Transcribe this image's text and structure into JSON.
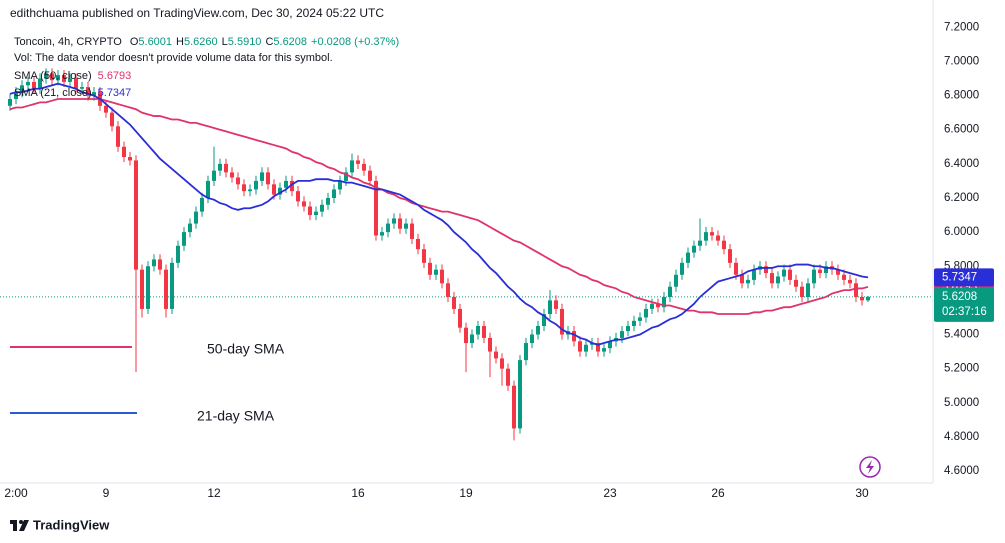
{
  "chart_data": {
    "type": "candlestick",
    "attribution": "edithchuama published on TradingView.com, Dec 30, 2024 05:22 UTC",
    "symbol": "Toncoin, 4h, CRYPTO",
    "ohlc_legend": [
      {
        "label": "O",
        "value": "5.6001"
      },
      {
        "label": "H",
        "value": "5.6260"
      },
      {
        "label": "L",
        "value": "5.5910"
      },
      {
        "label": "C",
        "value": "5.6208"
      }
    ],
    "change": "+0.0208 (+0.37%)",
    "volume_note": "Vol: The data vendor doesn't provide volume data for this symbol.",
    "countdown": "02:37:16",
    "footer": "TradingView",
    "up_color": "#089981",
    "down_color": "#f23645",
    "categories": [
      null,
      "2:00",
      null,
      null,
      null,
      null,
      null,
      null,
      null,
      null,
      null,
      null,
      null,
      null,
      null,
      null,
      "9",
      null,
      null,
      null,
      null,
      null,
      null,
      null,
      null,
      null,
      null,
      null,
      null,
      null,
      null,
      null,
      null,
      null,
      "12",
      null,
      null,
      null,
      null,
      null,
      null,
      null,
      null,
      null,
      null,
      null,
      null,
      null,
      null,
      null,
      null,
      null,
      null,
      null,
      null,
      null,
      null,
      null,
      "16",
      null,
      null,
      null,
      null,
      null,
      null,
      null,
      null,
      null,
      null,
      null,
      null,
      null,
      null,
      null,
      null,
      null,
      "19",
      null,
      null,
      null,
      null,
      null,
      null,
      null,
      null,
      null,
      null,
      null,
      null,
      null,
      null,
      null,
      null,
      null,
      null,
      null,
      null,
      null,
      null,
      null,
      "23",
      null,
      null,
      null,
      null,
      null,
      null,
      null,
      null,
      null,
      null,
      null,
      null,
      null,
      null,
      null,
      null,
      null,
      "26",
      null,
      null,
      null,
      null,
      null,
      null,
      null,
      null,
      null,
      null,
      null,
      null,
      null,
      null,
      null,
      null,
      null,
      null,
      null,
      null,
      null,
      null,
      null,
      "30",
      null
    ],
    "open": [
      6.74,
      6.78,
      6.82,
      6.86,
      6.88,
      6.84,
      6.9,
      6.93,
      6.89,
      6.92,
      6.88,
      6.9,
      6.84,
      6.85,
      6.8,
      6.82,
      6.74,
      6.7,
      6.62,
      6.5,
      6.44,
      6.42,
      5.78,
      5.55,
      5.8,
      5.84,
      5.78,
      5.55,
      5.82,
      5.92,
      6.0,
      6.05,
      6.12,
      6.2,
      6.3,
      6.36,
      6.4,
      6.35,
      6.32,
      6.28,
      6.24,
      6.25,
      6.3,
      6.35,
      6.28,
      6.22,
      6.26,
      6.3,
      6.24,
      6.18,
      6.15,
      6.1,
      6.12,
      6.16,
      6.2,
      6.25,
      6.3,
      6.35,
      6.42,
      6.4,
      6.36,
      6.3,
      5.98,
      6.0,
      6.05,
      6.08,
      6.02,
      6.05,
      5.96,
      5.9,
      5.82,
      5.75,
      5.78,
      5.7,
      5.62,
      5.55,
      5.44,
      5.35,
      5.4,
      5.45,
      5.38,
      5.3,
      5.26,
      5.2,
      5.1,
      4.85,
      5.25,
      5.35,
      5.4,
      5.45,
      5.52,
      5.6,
      5.55,
      5.4,
      5.42,
      5.36,
      5.3,
      5.34,
      5.35,
      5.3,
      5.32,
      5.36,
      5.38,
      5.42,
      5.45,
      5.48,
      5.5,
      5.55,
      5.58,
      5.56,
      5.62,
      5.68,
      5.75,
      5.82,
      5.88,
      5.92,
      5.95,
      6.0,
      5.98,
      5.95,
      5.9,
      5.82,
      5.75,
      5.7,
      5.72,
      5.78,
      5.8,
      5.76,
      5.7,
      5.74,
      5.78,
      5.72,
      5.68,
      5.62,
      5.7,
      5.78,
      5.76,
      5.8,
      5.78,
      5.75,
      5.72,
      5.7,
      5.62,
      5.6001
    ],
    "high": [
      6.81,
      6.85,
      6.89,
      6.91,
      6.91,
      6.93,
      6.96,
      6.96,
      6.95,
      6.95,
      6.93,
      6.93,
      6.88,
      6.88,
      6.85,
      6.85,
      6.77,
      6.73,
      6.65,
      6.53,
      6.47,
      6.45,
      5.81,
      5.83,
      5.87,
      5.87,
      5.81,
      5.85,
      5.95,
      6.03,
      6.08,
      6.15,
      6.23,
      6.33,
      6.5,
      6.43,
      6.43,
      6.38,
      6.35,
      6.31,
      6.28,
      6.33,
      6.38,
      6.38,
      6.31,
      6.29,
      6.33,
      6.33,
      6.27,
      6.21,
      6.18,
      6.15,
      6.19,
      6.23,
      6.28,
      6.33,
      6.38,
      6.46,
      6.45,
      6.43,
      6.39,
      6.33,
      6.03,
      6.08,
      6.11,
      6.11,
      6.08,
      6.08,
      5.99,
      5.93,
      5.85,
      5.81,
      5.81,
      5.73,
      5.65,
      5.58,
      5.47,
      5.43,
      5.48,
      5.48,
      5.41,
      5.33,
      5.29,
      5.23,
      5.13,
      5.28,
      5.38,
      5.43,
      5.48,
      5.55,
      5.66,
      5.63,
      5.58,
      5.45,
      5.45,
      5.39,
      5.37,
      5.38,
      5.38,
      5.35,
      5.39,
      5.41,
      5.45,
      5.48,
      5.51,
      5.53,
      5.58,
      5.61,
      5.61,
      5.65,
      5.71,
      5.78,
      5.85,
      5.91,
      5.95,
      6.08,
      6.03,
      6.03,
      6.01,
      5.98,
      5.93,
      5.85,
      5.78,
      5.75,
      5.81,
      5.83,
      5.83,
      5.79,
      5.77,
      5.81,
      5.81,
      5.75,
      5.71,
      5.73,
      5.81,
      5.81,
      5.83,
      5.83,
      5.81,
      5.78,
      5.75,
      5.73,
      5.65,
      5.626
    ],
    "low": [
      6.71,
      6.75,
      6.79,
      6.83,
      6.81,
      6.81,
      6.87,
      6.86,
      6.86,
      6.85,
      6.85,
      6.81,
      6.81,
      6.77,
      6.77,
      6.71,
      6.67,
      6.59,
      6.47,
      6.41,
      6.39,
      5.18,
      5.5,
      5.52,
      5.77,
      5.75,
      5.5,
      5.52,
      5.79,
      5.89,
      5.97,
      6.02,
      6.09,
      6.17,
      6.27,
      6.33,
      6.32,
      6.29,
      6.25,
      6.21,
      6.21,
      6.22,
      6.27,
      6.25,
      6.19,
      6.19,
      6.23,
      6.21,
      6.15,
      6.12,
      6.07,
      6.07,
      6.09,
      6.13,
      6.17,
      6.22,
      6.27,
      6.32,
      6.37,
      6.33,
      6.27,
      5.95,
      5.95,
      5.97,
      6.02,
      5.99,
      5.99,
      5.93,
      5.87,
      5.79,
      5.72,
      5.72,
      5.67,
      5.59,
      5.52,
      5.41,
      5.18,
      5.32,
      5.37,
      5.35,
      5.15,
      5.23,
      5.1,
      5.07,
      4.78,
      4.82,
      5.22,
      5.32,
      5.37,
      5.42,
      5.49,
      5.52,
      5.37,
      5.37,
      5.33,
      5.27,
      5.27,
      5.31,
      5.27,
      5.27,
      5.29,
      5.33,
      5.35,
      5.39,
      5.42,
      5.45,
      5.47,
      5.52,
      5.53,
      5.53,
      5.59,
      5.65,
      5.72,
      5.79,
      5.85,
      5.89,
      5.92,
      5.95,
      5.92,
      5.87,
      5.79,
      5.72,
      5.67,
      5.67,
      5.69,
      5.75,
      5.73,
      5.67,
      5.67,
      5.71,
      5.69,
      5.65,
      5.59,
      5.59,
      5.67,
      5.73,
      5.73,
      5.75,
      5.72,
      5.69,
      5.67,
      5.59,
      5.57,
      5.591
    ],
    "close": [
      6.78,
      6.82,
      6.86,
      6.88,
      6.84,
      6.9,
      6.93,
      6.89,
      6.92,
      6.88,
      6.9,
      6.84,
      6.85,
      6.8,
      6.82,
      6.74,
      6.7,
      6.62,
      6.5,
      6.44,
      6.42,
      5.78,
      5.55,
      5.8,
      5.84,
      5.78,
      5.55,
      5.82,
      5.92,
      6.0,
      6.05,
      6.12,
      6.2,
      6.3,
      6.36,
      6.4,
      6.35,
      6.32,
      6.28,
      6.24,
      6.25,
      6.3,
      6.35,
      6.28,
      6.22,
      6.26,
      6.3,
      6.24,
      6.18,
      6.15,
      6.1,
      6.12,
      6.16,
      6.2,
      6.25,
      6.3,
      6.35,
      6.42,
      6.4,
      6.36,
      6.3,
      5.98,
      6.0,
      6.05,
      6.08,
      6.02,
      6.05,
      5.96,
      5.9,
      5.82,
      5.75,
      5.78,
      5.7,
      5.62,
      5.55,
      5.44,
      5.35,
      5.4,
      5.45,
      5.38,
      5.3,
      5.26,
      5.2,
      5.1,
      4.85,
      5.25,
      5.35,
      5.4,
      5.45,
      5.52,
      5.6,
      5.55,
      5.4,
      5.42,
      5.36,
      5.3,
      5.34,
      5.35,
      5.3,
      5.32,
      5.36,
      5.38,
      5.42,
      5.45,
      5.48,
      5.5,
      5.55,
      5.58,
      5.56,
      5.62,
      5.68,
      5.75,
      5.82,
      5.88,
      5.92,
      5.95,
      6.0,
      5.98,
      5.95,
      5.9,
      5.82,
      5.75,
      5.7,
      5.72,
      5.78,
      5.8,
      5.76,
      5.7,
      5.74,
      5.78,
      5.72,
      5.68,
      5.62,
      5.7,
      5.78,
      5.76,
      5.8,
      5.78,
      5.75,
      5.72,
      5.7,
      5.62,
      5.6,
      5.6208
    ],
    "series": [
      {
        "name": "SMA (50, close)",
        "color": "#e0336a",
        "values": [
          6.72,
          6.73,
          6.73,
          6.74,
          6.75,
          6.76,
          6.76,
          6.77,
          6.78,
          6.78,
          6.78,
          6.78,
          6.78,
          6.78,
          6.78,
          6.78,
          6.77,
          6.76,
          6.75,
          6.74,
          6.73,
          6.72,
          6.7,
          6.69,
          6.68,
          6.68,
          6.67,
          6.66,
          6.66,
          6.65,
          6.64,
          6.64,
          6.63,
          6.62,
          6.61,
          6.6,
          6.59,
          6.58,
          6.57,
          6.56,
          6.55,
          6.54,
          6.53,
          6.52,
          6.51,
          6.5,
          6.49,
          6.47,
          6.46,
          6.44,
          6.43,
          6.41,
          6.4,
          6.38,
          6.37,
          6.35,
          6.34,
          6.32,
          6.31,
          6.29,
          6.28,
          6.26,
          6.25,
          6.23,
          6.22,
          6.2,
          6.19,
          6.17,
          6.16,
          6.15,
          6.14,
          6.13,
          6.12,
          6.12,
          6.11,
          6.1,
          6.09,
          6.08,
          6.07,
          6.05,
          6.03,
          6.01,
          5.99,
          5.97,
          5.95,
          5.94,
          5.92,
          5.9,
          5.88,
          5.86,
          5.84,
          5.82,
          5.8,
          5.79,
          5.77,
          5.75,
          5.74,
          5.72,
          5.71,
          5.69,
          5.68,
          5.67,
          5.65,
          5.64,
          5.62,
          5.61,
          5.6,
          5.59,
          5.58,
          5.57,
          5.57,
          5.56,
          5.55,
          5.54,
          5.54,
          5.53,
          5.53,
          5.53,
          5.52,
          5.52,
          5.52,
          5.52,
          5.52,
          5.52,
          5.53,
          5.53,
          5.54,
          5.54,
          5.55,
          5.56,
          5.56,
          5.57,
          5.58,
          5.59,
          5.6,
          5.61,
          5.62,
          5.64,
          5.65,
          5.66,
          5.66,
          5.67,
          5.67,
          5.6793
        ]
      },
      {
        "name": "SMA (21, close)",
        "color": "#2a2ed6",
        "values": [
          6.81,
          6.82,
          6.82,
          6.83,
          6.84,
          6.84,
          6.85,
          6.86,
          6.87,
          6.86,
          6.85,
          6.84,
          6.82,
          6.81,
          6.8,
          6.78,
          6.75,
          6.72,
          6.69,
          6.66,
          6.63,
          6.59,
          6.55,
          6.51,
          6.47,
          6.43,
          6.4,
          6.37,
          6.34,
          6.31,
          6.28,
          6.25,
          6.22,
          6.2,
          6.19,
          6.17,
          6.16,
          6.14,
          6.13,
          6.14,
          6.14,
          6.15,
          6.16,
          6.18,
          6.21,
          6.23,
          6.25,
          6.28,
          6.3,
          6.3,
          6.3,
          6.31,
          6.31,
          6.31,
          6.3,
          6.3,
          6.29,
          6.29,
          6.28,
          6.27,
          6.26,
          6.25,
          6.25,
          6.24,
          6.23,
          6.22,
          6.2,
          6.18,
          6.16,
          6.13,
          6.11,
          6.09,
          6.07,
          6.04,
          6.0,
          5.97,
          5.94,
          5.9,
          5.87,
          5.83,
          5.79,
          5.76,
          5.72,
          5.68,
          5.65,
          5.61,
          5.58,
          5.56,
          5.53,
          5.51,
          5.48,
          5.46,
          5.43,
          5.41,
          5.4,
          5.38,
          5.37,
          5.35,
          5.34,
          5.35,
          5.36,
          5.37,
          5.37,
          5.38,
          5.39,
          5.4,
          5.42,
          5.44,
          5.45,
          5.47,
          5.49,
          5.5,
          5.52,
          5.55,
          5.58,
          5.62,
          5.65,
          5.68,
          5.71,
          5.72,
          5.73,
          5.74,
          5.75,
          5.77,
          5.78,
          5.79,
          5.79,
          5.79,
          5.8,
          5.8,
          5.8,
          5.81,
          5.81,
          5.81,
          5.8,
          5.8,
          5.79,
          5.79,
          5.78,
          5.77,
          5.76,
          5.75,
          5.74,
          5.7347
        ]
      }
    ],
    "annotations": [
      {
        "text": "50-day SMA",
        "color": "#e0336a"
      },
      {
        "text": "21-day SMA",
        "color": "#2a5bd6"
      }
    ],
    "ylim": [
      4.53,
      7.36
    ],
    "yticks": [
      {
        "value": 4.6,
        "label": "4.6000"
      },
      {
        "value": 4.8,
        "label": "4.8000"
      },
      {
        "value": 5.0,
        "label": "5.0000"
      },
      {
        "value": 5.2,
        "label": "5.2000"
      },
      {
        "value": 5.4,
        "label": "5.4000"
      },
      {
        "value": 5.6,
        "label": "5.6000"
      },
      {
        "value": 5.8,
        "label": "5.8000"
      },
      {
        "value": 6.0,
        "label": "6.0000"
      },
      {
        "value": 6.2,
        "label": "6.2000"
      },
      {
        "value": 6.4,
        "label": "6.4000"
      },
      {
        "value": 6.6,
        "label": "6.6000"
      },
      {
        "value": 6.8,
        "label": "6.8000"
      },
      {
        "value": 7.0,
        "label": "7.0000"
      },
      {
        "value": 7.2,
        "label": "7.2000"
      }
    ],
    "grid": false
  }
}
